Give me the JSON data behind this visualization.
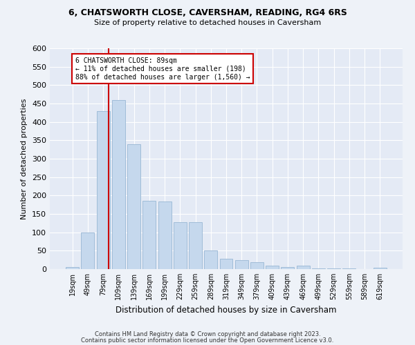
{
  "title": "6, CHATSWORTH CLOSE, CAVERSHAM, READING, RG4 6RS",
  "subtitle": "Size of property relative to detached houses in Caversham",
  "xlabel": "Distribution of detached houses by size in Caversham",
  "ylabel": "Number of detached properties",
  "categories": [
    "19sqm",
    "49sqm",
    "79sqm",
    "109sqm",
    "139sqm",
    "169sqm",
    "199sqm",
    "229sqm",
    "259sqm",
    "289sqm",
    "319sqm",
    "349sqm",
    "379sqm",
    "409sqm",
    "439sqm",
    "469sqm",
    "499sqm",
    "529sqm",
    "559sqm",
    "589sqm",
    "619sqm"
  ],
  "values": [
    5,
    100,
    430,
    460,
    340,
    185,
    183,
    128,
    128,
    50,
    28,
    25,
    18,
    10,
    6,
    10,
    2,
    1,
    1,
    0,
    3
  ],
  "bar_color": "#c5d8ed",
  "bar_edgecolor": "#a0bcd8",
  "annotation_text": "6 CHATSWORTH CLOSE: 89sqm\n← 11% of detached houses are smaller (198)\n88% of detached houses are larger (1,560) →",
  "annotation_box_color": "#ffffff",
  "annotation_box_edgecolor": "#cc0000",
  "vline_color": "#cc0000",
  "ylim": [
    0,
    600
  ],
  "yticks": [
    0,
    50,
    100,
    150,
    200,
    250,
    300,
    350,
    400,
    450,
    500,
    550,
    600
  ],
  "footer_line1": "Contains HM Land Registry data © Crown copyright and database right 2023.",
  "footer_line2": "Contains public sector information licensed under the Open Government Licence v3.0.",
  "bg_color": "#eef2f8",
  "plot_bg_color": "#e4eaf5"
}
